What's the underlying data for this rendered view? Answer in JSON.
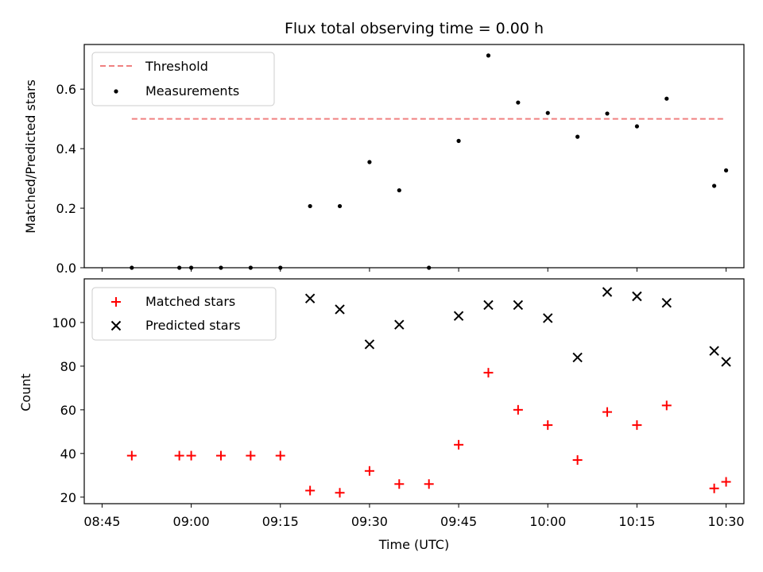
{
  "chart_data": [
    {
      "type": "scatter",
      "title": "Flux total observing time = 0.00 h",
      "ylabel": "Matched/Predicted stars",
      "xlabel": "",
      "xlim": [
        "08:42",
        "10:33"
      ],
      "ylim": [
        0,
        0.75
      ],
      "grid": false,
      "legend_position": "top-left",
      "y_ticks": [
        "0.0",
        "0.2",
        "0.4",
        "0.6"
      ],
      "threshold": {
        "name": "Threshold",
        "value": 0.5,
        "x_range": [
          "08:50",
          "10:30"
        ],
        "color": "#f08080",
        "style": "dashed"
      },
      "series": [
        {
          "name": "Measurements",
          "marker": "dot",
          "color": "#000000",
          "x": [
            "08:50",
            "08:58",
            "09:00",
            "09:05",
            "09:10",
            "09:15",
            "09:20",
            "09:25",
            "09:30",
            "09:35",
            "09:40",
            "09:45",
            "09:50",
            "09:55",
            "10:00",
            "10:05",
            "10:10",
            "10:15",
            "10:20",
            "10:28",
            "10:30"
          ],
          "y": [
            0.0,
            0.0,
            0.0,
            0.0,
            0.0,
            0.0,
            0.207,
            0.207,
            0.355,
            0.26,
            0.0,
            0.426,
            0.713,
            0.555,
            0.52,
            0.44,
            0.518,
            0.475,
            0.568,
            0.275,
            0.327
          ]
        }
      ]
    },
    {
      "type": "scatter",
      "title": "",
      "xlabel": "Time (UTC)",
      "ylabel": "Count",
      "xlim": [
        "08:42",
        "10:33"
      ],
      "ylim": [
        17,
        120
      ],
      "grid": false,
      "legend_position": "top-left",
      "x_ticks": [
        "08:45",
        "09:00",
        "09:15",
        "09:30",
        "09:45",
        "10:00",
        "10:15",
        "10:30"
      ],
      "y_ticks": [
        "20",
        "40",
        "60",
        "80",
        "100"
      ],
      "series": [
        {
          "name": "Matched stars",
          "marker": "plus",
          "color": "#ff0000",
          "x": [
            "08:50",
            "08:58",
            "09:00",
            "09:05",
            "09:10",
            "09:15",
            "09:20",
            "09:25",
            "09:30",
            "09:35",
            "09:40",
            "09:45",
            "09:50",
            "09:55",
            "10:00",
            "10:05",
            "10:10",
            "10:15",
            "10:20",
            "10:28",
            "10:30"
          ],
          "y": [
            39,
            39,
            39,
            39,
            39,
            39,
            23,
            22,
            32,
            26,
            26,
            44,
            77,
            60,
            53,
            37,
            59,
            53,
            62,
            24,
            27
          ]
        },
        {
          "name": "Predicted stars",
          "marker": "x",
          "color": "#000000",
          "x": [
            "09:20",
            "09:25",
            "09:30",
            "09:35",
            "09:45",
            "09:50",
            "09:55",
            "10:00",
            "10:05",
            "10:10",
            "10:15",
            "10:20",
            "10:28",
            "10:30"
          ],
          "y": [
            111,
            106,
            90,
            99,
            103,
            108,
            108,
            102,
            84,
            114,
            112,
            109,
            87,
            82
          ]
        }
      ]
    }
  ]
}
